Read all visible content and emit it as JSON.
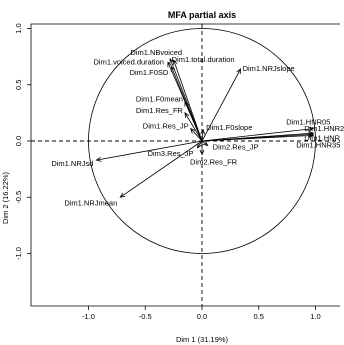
{
  "chart_data": {
    "type": "scatter",
    "title": "MFA partial axis",
    "xlabel": "Dim 1 (31.19%)",
    "ylabel": "Dim 2 (16.22%)",
    "xlim": [
      -1.2,
      1.2
    ],
    "ylim": [
      -1.2,
      1.2
    ],
    "x_ticks": [
      "-1.0",
      "-0.5",
      "0.0",
      "0.5",
      "1.0"
    ],
    "y_ticks": [
      "-1.0",
      "-0.5",
      "0.0",
      "0.5",
      "1.0"
    ],
    "circle_radius": 1,
    "reference_lines": "dashed at x = 0 and y = 0",
    "series": [
      {
        "vectors": [
          {
            "label": "Dim1.NBvoiced",
            "x": -0.28,
            "y": 0.73
          },
          {
            "label": "Dim1.total.duration",
            "x": -0.25,
            "y": 0.72
          },
          {
            "label": "Dim1.voiced.duration",
            "x": -0.3,
            "y": 0.7
          },
          {
            "label": "Dim1.F0SD",
            "x": -0.27,
            "y": 0.66
          },
          {
            "label": "Dim1.NRJslope",
            "x": 0.34,
            "y": 0.64
          },
          {
            "label": "Dim1.F0mean",
            "x": -0.15,
            "y": 0.35
          },
          {
            "label": "Dim1.Res_FR",
            "x": -0.15,
            "y": 0.25
          },
          {
            "label": "Dim1.Res_JP",
            "x": -0.1,
            "y": 0.11
          },
          {
            "label": "Dim1.F0slope",
            "x": 0.01,
            "y": 0.1
          },
          {
            "label": "Dim1.HNR05",
            "x": 0.98,
            "y": 0.11
          },
          {
            "label": "Dim1.HNR2",
            "x": 0.98,
            "y": 0.07
          },
          {
            "label": "Dim1.HNR",
            "x": 0.98,
            "y": 0.06
          },
          {
            "label": "Dim1.HNR35",
            "x": 0.98,
            "y": 0.05
          },
          {
            "label": "Dim2.Res_JP",
            "x": 0.05,
            "y": -0.04
          },
          {
            "label": "Dim3.Res_JP",
            "x": -0.04,
            "y": -0.06
          },
          {
            "label": "Dim2.Res_FR",
            "x": 0,
            "y": -0.12
          },
          {
            "label": "Dim1.NRJsd",
            "x": -0.93,
            "y": -0.17
          },
          {
            "label": "Dim1.NRJmean",
            "x": -0.72,
            "y": -0.5
          }
        ]
      }
    ]
  }
}
